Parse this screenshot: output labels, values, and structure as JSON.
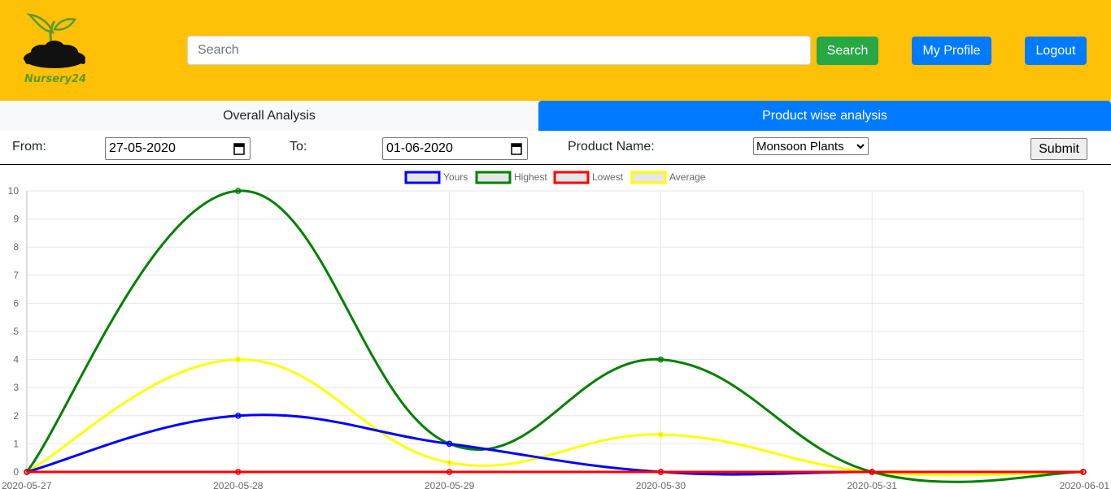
{
  "header": {
    "logo_text": "Nursery24",
    "search_placeholder": "Search",
    "search_button": "Search",
    "profile_button": "My Profile",
    "logout_button": "Logout"
  },
  "tabs": [
    {
      "label": "Overall Analysis",
      "active": false
    },
    {
      "label": "Product wise analysis",
      "active": true
    }
  ],
  "filters": {
    "from_label": "From:",
    "from_value": "27-05-2020",
    "to_label": "To:",
    "to_value": "01-06-2020",
    "product_label": "Product Name:",
    "product_value": "Monsoon Plants",
    "submit_label": "Submit"
  },
  "colors": {
    "header_bg": "#ffc107",
    "primary": "#007bff",
    "success": "#28a745"
  },
  "chart_data": {
    "type": "line",
    "categories": [
      "2020-05-27",
      "2020-05-28",
      "2020-05-29",
      "2020-05-30",
      "2020-05-31",
      "2020-06-01"
    ],
    "ylim": [
      0,
      10
    ],
    "yticks": [
      0,
      1,
      2,
      3,
      4,
      5,
      6,
      7,
      8,
      9,
      10
    ],
    "legend_position": "top",
    "grid": true,
    "series": [
      {
        "name": "Yours",
        "color": "#0000ff",
        "values": [
          0,
          2,
          1,
          0,
          0,
          0
        ]
      },
      {
        "name": "Highest",
        "color": "#008000",
        "values": [
          0,
          10,
          1,
          4,
          0,
          0
        ]
      },
      {
        "name": "Lowest",
        "color": "#ff0000",
        "values": [
          0,
          0,
          0,
          0,
          0,
          0
        ]
      },
      {
        "name": "Average",
        "color": "#ffff00",
        "values": [
          0,
          4,
          0.33,
          1.33,
          0,
          0
        ]
      }
    ]
  }
}
